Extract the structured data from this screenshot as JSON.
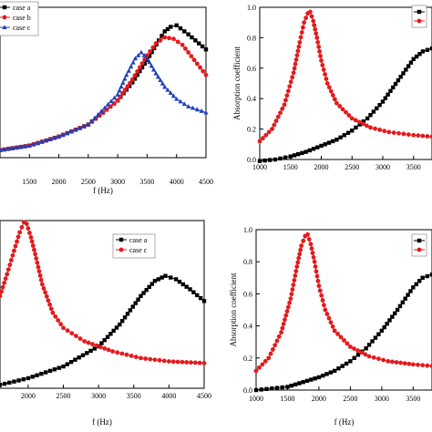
{
  "colors": {
    "case_a": "#000000",
    "case_b": "#e41a1c",
    "case_c": "#1f3fbf",
    "case_c_panel": "#e41a1c"
  },
  "chart_data": [
    {
      "type": "line",
      "panel": "top-left",
      "xlabel": "f (Hz)",
      "ylabel": "",
      "xlim": [
        1000,
        4500
      ],
      "ylim": [
        0,
        1
      ],
      "xticks": [
        1500,
        2000,
        2500,
        3000,
        3500,
        4000,
        4500
      ],
      "xtick_labels": [
        "1500",
        "2000",
        "2500",
        "3000",
        "3500",
        "4000",
        "4500"
      ],
      "yticks": [],
      "legend": {
        "placement": "top-left",
        "entries": [
          "case a",
          "case b",
          "case c"
        ]
      },
      "series": [
        {
          "name": "case a",
          "color": "#000000",
          "marker": "square",
          "x": [
            1000,
            1500,
            2000,
            2500,
            3000,
            3250,
            3500,
            3700,
            3800,
            3900,
            4000,
            4200,
            4500
          ],
          "y": [
            0.05,
            0.08,
            0.14,
            0.22,
            0.38,
            0.5,
            0.65,
            0.78,
            0.84,
            0.87,
            0.88,
            0.82,
            0.72
          ]
        },
        {
          "name": "case b",
          "color": "#e41a1c",
          "marker": "circle",
          "x": [
            1000,
            1500,
            2000,
            2500,
            3000,
            3250,
            3500,
            3650,
            3800,
            3950,
            4100,
            4300,
            4500
          ],
          "y": [
            0.05,
            0.08,
            0.14,
            0.22,
            0.38,
            0.52,
            0.68,
            0.76,
            0.8,
            0.79,
            0.75,
            0.65,
            0.55
          ]
        },
        {
          "name": "case c",
          "color": "#1f3fbf",
          "marker": "triangle",
          "x": [
            1000,
            1500,
            2000,
            2500,
            3000,
            3150,
            3300,
            3400,
            3500,
            3650,
            3800,
            4000,
            4200,
            4500
          ],
          "y": [
            0.05,
            0.08,
            0.14,
            0.22,
            0.42,
            0.55,
            0.66,
            0.7,
            0.66,
            0.56,
            0.47,
            0.39,
            0.34,
            0.3
          ]
        }
      ]
    },
    {
      "type": "line",
      "panel": "top-right",
      "xlabel": "",
      "ylabel": "Absorption coefficient",
      "xlim": [
        1000,
        3800
      ],
      "ylim": [
        0,
        1.0
      ],
      "xticks": [
        1000,
        1500,
        2000,
        2500,
        3000,
        3500
      ],
      "xtick_labels": [
        "1000",
        "1500",
        "2000",
        "2500",
        "3000",
        "3500"
      ],
      "yticks": [
        0.0,
        0.2,
        0.4,
        0.6,
        0.8,
        1.0
      ],
      "ytick_labels": [
        "0.0",
        "0.2",
        "0.4",
        "0.6",
        "0.8",
        "1.0"
      ],
      "legend": {
        "placement": "top-right",
        "entries": []
      },
      "series": [
        {
          "name": "",
          "color": "#000000",
          "marker": "square",
          "x": [
            1000,
            1250,
            1500,
            1750,
            2000,
            2250,
            2500,
            2750,
            3000,
            3250,
            3500,
            3650,
            3800
          ],
          "y": [
            -0.01,
            0.0,
            0.02,
            0.05,
            0.09,
            0.13,
            0.19,
            0.27,
            0.38,
            0.52,
            0.66,
            0.71,
            0.73
          ]
        },
        {
          "name": "",
          "color": "#e41a1c",
          "marker": "circle",
          "x": [
            1000,
            1200,
            1400,
            1550,
            1650,
            1720,
            1780,
            1820,
            1870,
            1930,
            2000,
            2100,
            2250,
            2500,
            2800,
            3100,
            3500,
            3800
          ],
          "y": [
            0.12,
            0.2,
            0.36,
            0.57,
            0.77,
            0.9,
            0.96,
            0.97,
            0.91,
            0.8,
            0.65,
            0.5,
            0.37,
            0.27,
            0.21,
            0.18,
            0.16,
            0.15
          ]
        }
      ]
    },
    {
      "type": "line",
      "panel": "bottom-left",
      "xlabel": "f (Hz)",
      "ylabel": "",
      "xlim": [
        1600,
        4500
      ],
      "ylim": [
        0,
        1
      ],
      "xticks": [
        2000,
        2500,
        3000,
        3500,
        4000,
        4500
      ],
      "xtick_labels": [
        "2000",
        "2500",
        "3000",
        "3500",
        "4000",
        "4500"
      ],
      "yticks": [],
      "legend": {
        "placement": "top-right",
        "entries": [
          "case a",
          "case c"
        ]
      },
      "series": [
        {
          "name": "case a",
          "color": "#000000",
          "marker": "square",
          "x": [
            1600,
            2000,
            2500,
            3000,
            3300,
            3600,
            3800,
            3950,
            4100,
            4300,
            4500
          ],
          "y": [
            0.02,
            0.06,
            0.13,
            0.25,
            0.38,
            0.55,
            0.64,
            0.67,
            0.65,
            0.59,
            0.52
          ]
        },
        {
          "name": "case c",
          "color": "#e41a1c",
          "marker": "circle",
          "x": [
            1600,
            1700,
            1800,
            1880,
            1940,
            1980,
            2040,
            2100,
            2200,
            2350,
            2500,
            2800,
            3200,
            3600,
            4000,
            4500
          ],
          "y": [
            0.55,
            0.68,
            0.82,
            0.93,
            0.99,
            0.98,
            0.9,
            0.8,
            0.62,
            0.45,
            0.36,
            0.28,
            0.22,
            0.18,
            0.16,
            0.15
          ]
        }
      ]
    },
    {
      "type": "line",
      "panel": "bottom-right",
      "xlabel": "f (Hz)",
      "ylabel": "Absorption coefficient",
      "xlim": [
        1000,
        3800
      ],
      "ylim": [
        0,
        1.0
      ],
      "xticks": [
        1000,
        1500,
        2000,
        2500,
        3000,
        3500
      ],
      "xtick_labels": [
        "1000",
        "1500",
        "2000",
        "2500",
        "3000",
        "3500"
      ],
      "yticks": [
        0.0,
        0.2,
        0.4,
        0.6,
        0.8,
        1.0
      ],
      "ytick_labels": [
        "0.0",
        "0.2",
        "0.4",
        "0.6",
        "0.8",
        "1.0"
      ],
      "legend": {
        "placement": "top-right",
        "entries": []
      },
      "series": [
        {
          "name": "",
          "color": "#000000",
          "marker": "square",
          "x": [
            1000,
            1250,
            1500,
            1750,
            2000,
            2250,
            2500,
            2750,
            3000,
            3250,
            3500,
            3650,
            3800
          ],
          "y": [
            0.0,
            0.01,
            0.02,
            0.05,
            0.08,
            0.12,
            0.18,
            0.26,
            0.37,
            0.5,
            0.64,
            0.7,
            0.72
          ]
        },
        {
          "name": "",
          "color": "#e41a1c",
          "marker": "circle",
          "x": [
            1000,
            1200,
            1400,
            1550,
            1650,
            1720,
            1780,
            1820,
            1870,
            1930,
            2000,
            2100,
            2250,
            2500,
            2800,
            3100,
            3500,
            3800
          ],
          "y": [
            0.12,
            0.2,
            0.36,
            0.57,
            0.77,
            0.9,
            0.96,
            0.97,
            0.91,
            0.8,
            0.65,
            0.5,
            0.37,
            0.27,
            0.21,
            0.18,
            0.16,
            0.15
          ]
        }
      ]
    }
  ]
}
